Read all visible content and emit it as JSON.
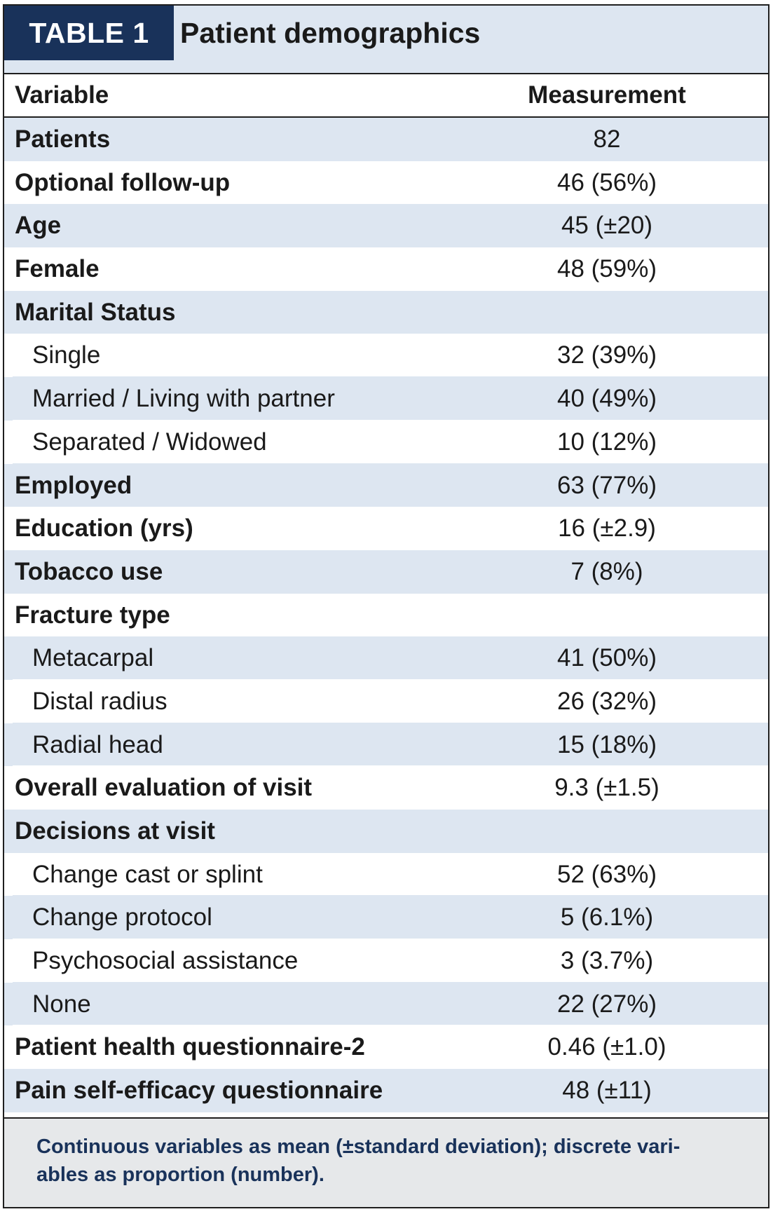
{
  "table": {
    "label": "TABLE 1",
    "title": "Patient demographics",
    "columns": {
      "variable": "Variable",
      "measurement": "Measurement"
    },
    "rows": [
      {
        "label": "Patients",
        "value": "82",
        "kind": "main"
      },
      {
        "label": "Optional follow-up",
        "value": "46 (56%)",
        "kind": "main"
      },
      {
        "label": "Age",
        "value": "45 (±20)",
        "kind": "main"
      },
      {
        "label": "Female",
        "value": "48 (59%)",
        "kind": "main"
      },
      {
        "label": "Marital Status",
        "value": "",
        "kind": "main"
      },
      {
        "label": "Single",
        "value": "32 (39%)",
        "kind": "sub"
      },
      {
        "label": "Married / Living with partner",
        "value": "40 (49%)",
        "kind": "sub"
      },
      {
        "label": "Separated / Widowed",
        "value": "10 (12%)",
        "kind": "sub"
      },
      {
        "label": "Employed",
        "value": "63 (77%)",
        "kind": "main"
      },
      {
        "label": "Education (yrs)",
        "value": "16 (±2.9)",
        "kind": "main"
      },
      {
        "label": "Tobacco use",
        "value": "7 (8%)",
        "kind": "main"
      },
      {
        "label": "Fracture type",
        "value": "",
        "kind": "main"
      },
      {
        "label": "Metacarpal",
        "value": "41 (50%)",
        "kind": "sub"
      },
      {
        "label": "Distal radius",
        "value": "26 (32%)",
        "kind": "sub"
      },
      {
        "label": "Radial head",
        "value": "15 (18%)",
        "kind": "sub"
      },
      {
        "label": "Overall evaluation of visit",
        "value": "9.3 (±1.5)",
        "kind": "main"
      },
      {
        "label": "Decisions at visit",
        "value": "",
        "kind": "main"
      },
      {
        "label": "Change cast or splint",
        "value": "52 (63%)",
        "kind": "sub"
      },
      {
        "label": "Change protocol",
        "value": "5 (6.1%)",
        "kind": "sub"
      },
      {
        "label": "Psychosocial assistance",
        "value": "3 (3.7%)",
        "kind": "sub"
      },
      {
        "label": "None",
        "value": "22 (27%)",
        "kind": "sub"
      },
      {
        "label": "Patient health questionnaire-2",
        "value": "0.46 (±1.0)",
        "kind": "main"
      },
      {
        "label": "Pain self-efficacy questionnaire",
        "value": "48 (±11)",
        "kind": "main"
      }
    ],
    "footnote": "Continuous variables as mean (±standard deviation); discrete vari- ables as proportion (number).",
    "colors": {
      "label_box": "#19325a",
      "shade": "#dde6f1",
      "footnote_bg": "#e6e8ea",
      "footnote_text": "#19325a"
    }
  }
}
